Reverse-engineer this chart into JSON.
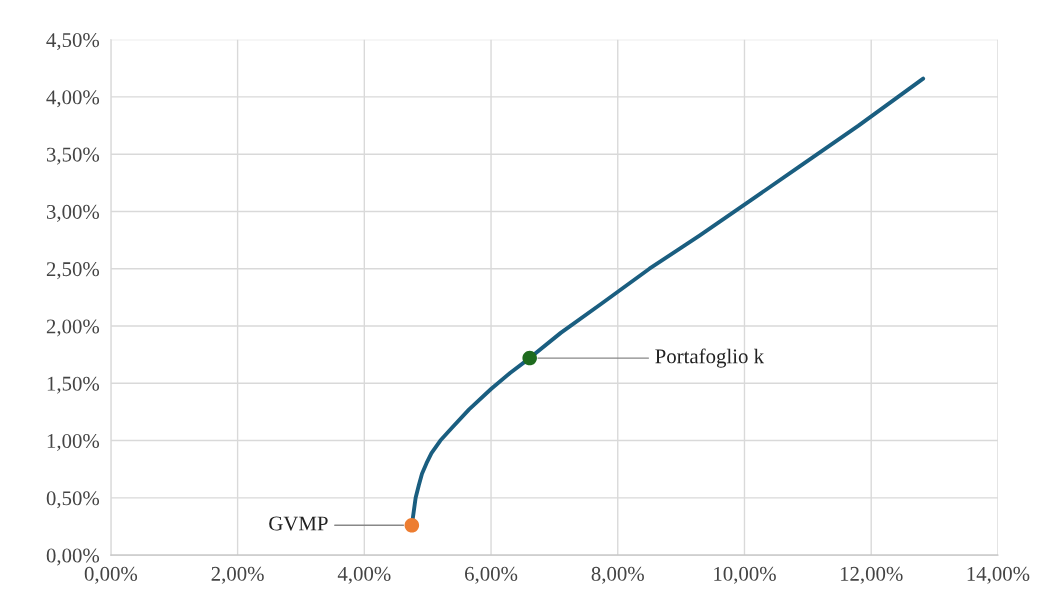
{
  "chart_data": {
    "type": "line",
    "series": [
      {
        "color": "#1a5e80",
        "x": [
          4.75,
          4.78,
          4.81,
          4.86,
          4.91,
          4.98,
          5.06,
          5.2,
          5.38,
          5.65,
          6.0,
          6.3,
          6.61,
          7.1,
          7.73,
          8.5,
          9.29,
          10.08,
          10.86,
          11.8,
          12.82
        ],
        "values": [
          0.26,
          0.38,
          0.5,
          0.61,
          0.71,
          0.8,
          0.89,
          1.0,
          1.11,
          1.27,
          1.45,
          1.59,
          1.72,
          1.94,
          2.19,
          2.5,
          2.79,
          3.09,
          3.39,
          3.75,
          4.16
        ]
      },
      {
        "type": "scatter",
        "color": "#ed7d31",
        "marker": "circle",
        "x": [
          4.75
        ],
        "values": [
          0.26
        ]
      },
      {
        "type": "scatter",
        "color": "#1e6b1e",
        "marker": "circle",
        "x": [
          6.61
        ],
        "values": [
          1.72
        ]
      }
    ],
    "annotations": [
      {
        "text": "GVMP",
        "x": 4.75,
        "y": 0.26
      },
      {
        "text": "Portafoglio k",
        "x": 6.61,
        "y": 1.72
      }
    ],
    "xlim": [
      0,
      14
    ],
    "ylim": [
      0,
      4.5
    ],
    "xticks": [
      {
        "value": 0,
        "label": "0,00%"
      },
      {
        "value": 2,
        "label": "2,00%"
      },
      {
        "value": 4,
        "label": "4,00%"
      },
      {
        "value": 6,
        "label": "6,00%"
      },
      {
        "value": 8,
        "label": "8,00%"
      },
      {
        "value": 10,
        "label": "10,00%"
      },
      {
        "value": 12,
        "label": "12,00%"
      },
      {
        "value": 14,
        "label": "14,00%"
      }
    ],
    "yticks": [
      {
        "value": 0,
        "label": "0,00%"
      },
      {
        "value": 0.5,
        "label": "0,50%"
      },
      {
        "value": 1,
        "label": "1,00%"
      },
      {
        "value": 1.5,
        "label": "1,50%"
      },
      {
        "value": 2,
        "label": "2,00%"
      },
      {
        "value": 2.5,
        "label": "2,50%"
      },
      {
        "value": 3,
        "label": "3,00%"
      },
      {
        "value": 3.5,
        "label": "3,50%"
      },
      {
        "value": 4,
        "label": "4,00%"
      },
      {
        "value": 4.5,
        "label": "4,50%"
      }
    ],
    "grid": true
  }
}
